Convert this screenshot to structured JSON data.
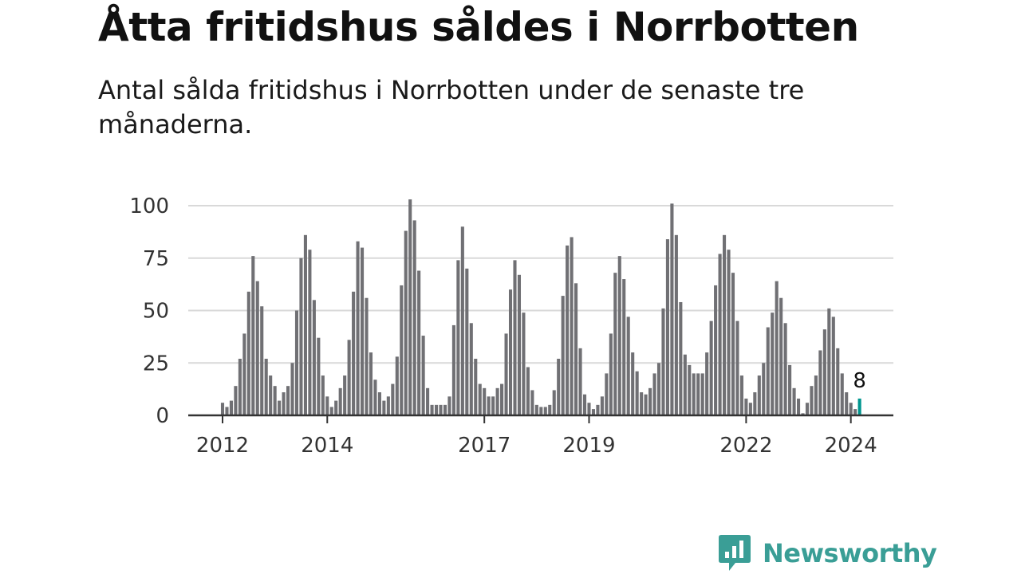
{
  "title": "Åtta fritidshus såldes i Norrbotten",
  "subtitle": "Antal sålda fritidshus i Norrbotten under de senaste tre månaderna.",
  "brand": {
    "name": "Newsworthy",
    "icon": "newsworthy-chart-bubble-icon",
    "color": "#3a9e96"
  },
  "colors": {
    "bar": "#707074",
    "highlight": "#00968f",
    "grid": "#d9d9d9",
    "axis": "#333333"
  },
  "chart_data": {
    "type": "bar",
    "title": "Åtta fritidshus såldes i Norrbotten",
    "xlabel": "",
    "ylabel": "",
    "ylim": [
      0,
      100
    ],
    "yticks": [
      0,
      25,
      50,
      75,
      100
    ],
    "start_year": 2012,
    "start_month": 1,
    "xtick_years": [
      "2012",
      "2014",
      "2017",
      "2019",
      "2022",
      "2024"
    ],
    "values": [
      6,
      4,
      7,
      14,
      27,
      39,
      59,
      76,
      64,
      52,
      27,
      19,
      14,
      7,
      11,
      14,
      25,
      50,
      75,
      86,
      79,
      55,
      37,
      19,
      9,
      4,
      7,
      13,
      19,
      36,
      59,
      83,
      80,
      56,
      30,
      17,
      11,
      7,
      9,
      15,
      28,
      62,
      88,
      103,
      93,
      69,
      38,
      13,
      5,
      5,
      5,
      5,
      9,
      43,
      74,
      90,
      70,
      44,
      27,
      15,
      13,
      9,
      9,
      13,
      15,
      39,
      60,
      74,
      67,
      49,
      23,
      12,
      5,
      4,
      4,
      5,
      12,
      27,
      57,
      81,
      85,
      63,
      32,
      10,
      6,
      3,
      5,
      9,
      20,
      39,
      68,
      76,
      65,
      47,
      30,
      21,
      11,
      10,
      13,
      20,
      25,
      51,
      84,
      101,
      86,
      54,
      29,
      24,
      20,
      20,
      20,
      30,
      45,
      62,
      77,
      86,
      79,
      68,
      45,
      19,
      8,
      6,
      11,
      19,
      25,
      42,
      49,
      64,
      56,
      44,
      24,
      13,
      8,
      1,
      6,
      14,
      19,
      31,
      41,
      51,
      47,
      32,
      20,
      11,
      6,
      3,
      8
    ],
    "highlight_index": 146,
    "highlight_label": "8"
  }
}
